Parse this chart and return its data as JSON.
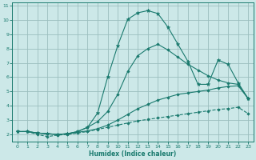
{
  "title": "",
  "xlabel": "Humidex (Indice chaleur)",
  "bg_color": "#cce8e8",
  "grid_color": "#aacccc",
  "line_color": "#1a7a6e",
  "xlim": [
    -0.5,
    23.5
  ],
  "ylim": [
    1.5,
    11.2
  ],
  "xticks": [
    0,
    1,
    2,
    3,
    4,
    5,
    6,
    7,
    8,
    9,
    10,
    11,
    12,
    13,
    14,
    15,
    16,
    17,
    18,
    19,
    20,
    21,
    22,
    23
  ],
  "yticks": [
    2,
    3,
    4,
    5,
    6,
    7,
    8,
    9,
    10,
    11
  ],
  "series": [
    {
      "x": [
        0,
        1,
        2,
        3,
        4,
        5,
        6,
        7,
        8,
        9,
        10,
        11,
        12,
        13,
        14,
        15,
        16,
        17,
        18,
        19,
        20,
        21,
        22,
        23
      ],
      "y": [
        2.2,
        2.2,
        2.0,
        1.85,
        1.95,
        2.0,
        2.1,
        2.2,
        2.35,
        2.5,
        2.65,
        2.8,
        2.95,
        3.05,
        3.15,
        3.25,
        3.35,
        3.45,
        3.55,
        3.65,
        3.75,
        3.8,
        3.9,
        3.45
      ],
      "linestyle": "--",
      "marker": "D",
      "markersize": 1.8
    },
    {
      "x": [
        0,
        1,
        2,
        3,
        4,
        5,
        6,
        7,
        8,
        9,
        10,
        11,
        12,
        13,
        14,
        15,
        16,
        17,
        18,
        19,
        20,
        21,
        22,
        23
      ],
      "y": [
        2.2,
        2.2,
        2.1,
        2.05,
        2.0,
        2.05,
        2.15,
        2.25,
        2.4,
        2.65,
        3.0,
        3.4,
        3.8,
        4.1,
        4.4,
        4.6,
        4.8,
        4.9,
        5.0,
        5.1,
        5.25,
        5.35,
        5.4,
        4.5
      ],
      "linestyle": "-",
      "marker": "D",
      "markersize": 1.8
    },
    {
      "x": [
        0,
        1,
        2,
        3,
        4,
        5,
        6,
        7,
        8,
        9,
        10,
        11,
        12,
        13,
        14,
        15,
        16,
        17,
        18,
        19,
        20,
        21,
        22,
        23
      ],
      "y": [
        2.2,
        2.2,
        2.1,
        2.05,
        2.0,
        2.05,
        2.2,
        2.5,
        2.9,
        3.6,
        4.8,
        6.4,
        7.5,
        8.0,
        8.3,
        7.9,
        7.4,
        6.9,
        6.5,
        6.1,
        5.8,
        5.6,
        5.5,
        4.5
      ],
      "linestyle": "-",
      "marker": "D",
      "markersize": 1.8
    },
    {
      "x": [
        0,
        1,
        2,
        3,
        4,
        5,
        6,
        7,
        8,
        9,
        10,
        11,
        12,
        13,
        14,
        15,
        16,
        17,
        18,
        19,
        20,
        21,
        22,
        23
      ],
      "y": [
        2.2,
        2.2,
        2.1,
        2.05,
        2.0,
        2.05,
        2.2,
        2.5,
        3.5,
        6.0,
        8.2,
        10.05,
        10.5,
        10.65,
        10.45,
        9.5,
        8.3,
        7.1,
        5.5,
        5.5,
        7.2,
        6.9,
        5.6,
        4.5
      ],
      "linestyle": "-",
      "marker": "*",
      "markersize": 3.5
    }
  ]
}
